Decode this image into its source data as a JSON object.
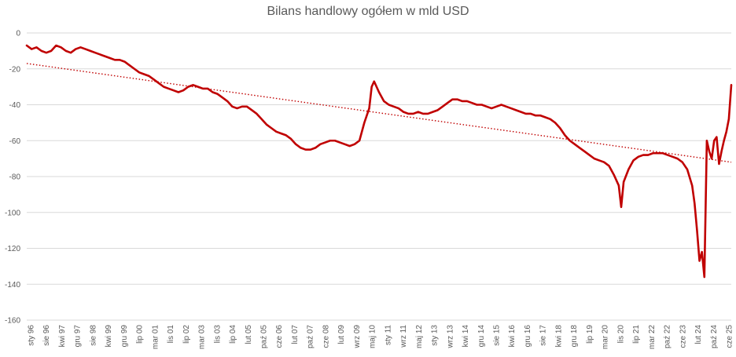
{
  "chart_data": {
    "type": "line",
    "title": "Bilans handlowy ogółem w mld USD",
    "xlabel": "",
    "ylabel": "",
    "ylim": [
      -160,
      0
    ],
    "yticks": [
      0,
      -20,
      -40,
      -60,
      -80,
      -100,
      -120,
      -140,
      -160
    ],
    "x_tick_labels": [
      "sty 96",
      "sie 96",
      "kwi 97",
      "gru 97",
      "sie 98",
      "kwi 99",
      "gru 99",
      "lip 00",
      "mar 01",
      "lis 01",
      "lip 02",
      "mar 03",
      "lis 03",
      "lip 04",
      "lut 05",
      "paź 05",
      "cze 06",
      "lut 07",
      "paź 07",
      "cze 08",
      "lut 09",
      "wrz 09",
      "maj 10",
      "sty 11",
      "wrz 11",
      "maj 12",
      "sty 13",
      "wrz 13",
      "kwi 14",
      "gru 14",
      "sie 15",
      "kwi 16",
      "gru 16",
      "sie 17",
      "kwi 18",
      "gru 18",
      "lip 19",
      "mar 20",
      "lis 20",
      "lip 21",
      "mar 22",
      "paź 22",
      "cze 23",
      "lut 24",
      "paź 24",
      "cze 25"
    ],
    "grid": "horizontal",
    "colors": {
      "series": "#c00000",
      "trend": "#c00000",
      "grid": "#d9d9d9",
      "text": "#595959"
    },
    "series": [
      {
        "name": "",
        "style": "solid",
        "points": [
          [
            0,
            -7
          ],
          [
            2,
            -9
          ],
          [
            4,
            -8
          ],
          [
            6,
            -10
          ],
          [
            8,
            -11
          ],
          [
            10,
            -10
          ],
          [
            12,
            -7
          ],
          [
            14,
            -8
          ],
          [
            16,
            -10
          ],
          [
            18,
            -11
          ],
          [
            20,
            -9
          ],
          [
            22,
            -8
          ],
          [
            24,
            -9
          ],
          [
            26,
            -10
          ],
          [
            28,
            -11
          ],
          [
            30,
            -12
          ],
          [
            32,
            -13
          ],
          [
            34,
            -14
          ],
          [
            36,
            -15
          ],
          [
            38,
            -15
          ],
          [
            40,
            -16
          ],
          [
            42,
            -18
          ],
          [
            44,
            -20
          ],
          [
            46,
            -22
          ],
          [
            48,
            -23
          ],
          [
            50,
            -24
          ],
          [
            52,
            -26
          ],
          [
            54,
            -28
          ],
          [
            56,
            -30
          ],
          [
            58,
            -31
          ],
          [
            60,
            -32
          ],
          [
            62,
            -33
          ],
          [
            64,
            -32
          ],
          [
            66,
            -30
          ],
          [
            68,
            -29
          ],
          [
            70,
            -30
          ],
          [
            72,
            -31
          ],
          [
            74,
            -31
          ],
          [
            76,
            -33
          ],
          [
            78,
            -34
          ],
          [
            80,
            -36
          ],
          [
            82,
            -38
          ],
          [
            84,
            -41
          ],
          [
            86,
            -42
          ],
          [
            88,
            -41
          ],
          [
            90,
            -41
          ],
          [
            92,
            -43
          ],
          [
            94,
            -45
          ],
          [
            96,
            -48
          ],
          [
            98,
            -51
          ],
          [
            100,
            -53
          ],
          [
            102,
            -55
          ],
          [
            104,
            -56
          ],
          [
            106,
            -57
          ],
          [
            108,
            -59
          ],
          [
            110,
            -62
          ],
          [
            112,
            -64
          ],
          [
            114,
            -65
          ],
          [
            116,
            -65
          ],
          [
            118,
            -64
          ],
          [
            120,
            -62
          ],
          [
            122,
            -61
          ],
          [
            124,
            -60
          ],
          [
            126,
            -60
          ],
          [
            128,
            -61
          ],
          [
            130,
            -62
          ],
          [
            132,
            -63
          ],
          [
            134,
            -62
          ],
          [
            136,
            -60
          ],
          [
            138,
            -50
          ],
          [
            140,
            -42
          ],
          [
            141,
            -30
          ],
          [
            142,
            -27
          ],
          [
            144,
            -33
          ],
          [
            146,
            -38
          ],
          [
            148,
            -40
          ],
          [
            150,
            -41
          ],
          [
            152,
            -42
          ],
          [
            154,
            -44
          ],
          [
            156,
            -45
          ],
          [
            158,
            -45
          ],
          [
            160,
            -44
          ],
          [
            162,
            -45
          ],
          [
            164,
            -45
          ],
          [
            166,
            -44
          ],
          [
            168,
            -43
          ],
          [
            170,
            -41
          ],
          [
            172,
            -39
          ],
          [
            174,
            -37
          ],
          [
            176,
            -37
          ],
          [
            178,
            -38
          ],
          [
            180,
            -38
          ],
          [
            182,
            -39
          ],
          [
            184,
            -40
          ],
          [
            186,
            -40
          ],
          [
            188,
            -41
          ],
          [
            190,
            -42
          ],
          [
            192,
            -41
          ],
          [
            194,
            -40
          ],
          [
            196,
            -41
          ],
          [
            198,
            -42
          ],
          [
            200,
            -43
          ],
          [
            202,
            -44
          ],
          [
            204,
            -45
          ],
          [
            206,
            -45
          ],
          [
            208,
            -46
          ],
          [
            210,
            -46
          ],
          [
            212,
            -47
          ],
          [
            214,
            -48
          ],
          [
            216,
            -50
          ],
          [
            218,
            -53
          ],
          [
            220,
            -57
          ],
          [
            222,
            -60
          ],
          [
            224,
            -62
          ],
          [
            226,
            -64
          ],
          [
            228,
            -66
          ],
          [
            230,
            -68
          ],
          [
            232,
            -70
          ],
          [
            234,
            -71
          ],
          [
            236,
            -72
          ],
          [
            238,
            -74
          ],
          [
            240,
            -79
          ],
          [
            242,
            -85
          ],
          [
            243,
            -97
          ],
          [
            244,
            -83
          ],
          [
            246,
            -76
          ],
          [
            248,
            -71
          ],
          [
            250,
            -69
          ],
          [
            252,
            -68
          ],
          [
            254,
            -68
          ],
          [
            256,
            -67
          ],
          [
            258,
            -67
          ],
          [
            260,
            -67
          ],
          [
            262,
            -68
          ],
          [
            264,
            -69
          ],
          [
            266,
            -70
          ],
          [
            268,
            -72
          ],
          [
            270,
            -76
          ],
          [
            272,
            -85
          ],
          [
            273,
            -95
          ],
          [
            274,
            -110
          ],
          [
            275,
            -127
          ],
          [
            276,
            -122
          ],
          [
            277,
            -136
          ],
          [
            278,
            -60
          ],
          [
            279,
            -66
          ],
          [
            280,
            -70
          ],
          [
            281,
            -60
          ],
          [
            282,
            -58
          ],
          [
            283,
            -73
          ],
          [
            284,
            -66
          ],
          [
            285,
            -60
          ],
          [
            286,
            -55
          ],
          [
            287,
            -48
          ],
          [
            288,
            -29
          ]
        ]
      },
      {
        "name": "",
        "style": "dotted",
        "points": [
          [
            0,
            -17
          ],
          [
            288,
            -72
          ]
        ]
      }
    ]
  }
}
